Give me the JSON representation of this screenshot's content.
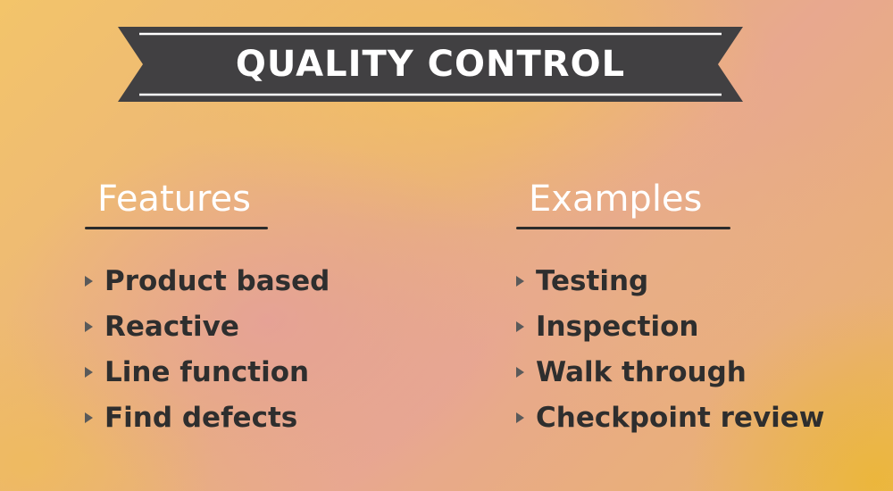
{
  "banner": {
    "title": "QUALITY CONTROL"
  },
  "features": {
    "heading": "Features",
    "items": [
      "Product based",
      "Reactive",
      "Line function",
      "Find defects"
    ]
  },
  "examples": {
    "heading": "Examples",
    "items": [
      "Testing",
      "Inspection",
      "Walk through",
      "Checkpoint review"
    ]
  },
  "colors": {
    "banner": "#414042",
    "text": "#2e2e2e",
    "heading": "#ffffff"
  }
}
